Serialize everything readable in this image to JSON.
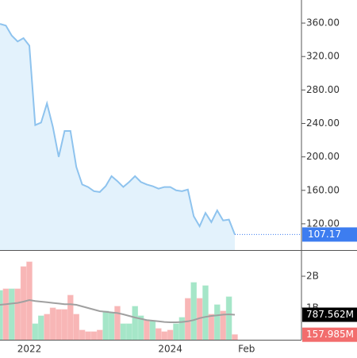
{
  "chart_data": [
    {
      "type": "area",
      "color": "#8ec3ee",
      "fill": "#e3f2fc",
      "last_color": "#3d7df0",
      "values": [
        359,
        357,
        345,
        338,
        342,
        333,
        238,
        241,
        264,
        236,
        200,
        231,
        231,
        188,
        167,
        164,
        159,
        158,
        165,
        177,
        171,
        164,
        170,
        177,
        170,
        167,
        165,
        162,
        164,
        164,
        160,
        159,
        161,
        129,
        117,
        133,
        122,
        136,
        124,
        125,
        107.17,
        null,
        null
      ],
      "ylim": [
        88.6,
        387.6
      ],
      "yticks": [
        {
          "value": 120,
          "label": "120.00"
        },
        {
          "value": 160,
          "label": "160.00"
        },
        {
          "value": 200,
          "label": "200.00"
        },
        {
          "value": 240,
          "label": "240.00"
        },
        {
          "value": 280,
          "label": "280.00"
        },
        {
          "value": 320,
          "label": "320.00"
        },
        {
          "value": 360,
          "label": "360.00"
        }
      ]
    },
    {
      "type": "bar",
      "categories": [
        null,
        null,
        null,
        null,
        null,
        "2022",
        null,
        null,
        null,
        null,
        null,
        null,
        null,
        null,
        null,
        null,
        null,
        null,
        null,
        null,
        null,
        null,
        null,
        null,
        null,
        null,
        null,
        null,
        null,
        "2024",
        null,
        null,
        null,
        null,
        null,
        null,
        null,
        null,
        null,
        null,
        null,
        null,
        "Feb"
      ],
      "ylim": [
        0,
        2.8
      ],
      "yticks": [
        {
          "value": 1,
          "label": "1B"
        },
        {
          "value": 2,
          "label": "2B"
        }
      ],
      "series": [
        {
          "type": "bar",
          "color": "#f26d6d",
          "values": [
            1.55,
            1.6,
            1.6,
            1.6,
            2.3,
            2.45,
            0.5,
            0.75,
            0.8,
            1.0,
            0.95,
            0.95,
            1.4,
            0.8,
            0.3,
            0.25,
            0.25,
            0.3,
            0.9,
            0.85,
            1.05,
            0.5,
            0.5,
            1.05,
            0.75,
            0.6,
            0.6,
            0.35,
            0.25,
            0.3,
            0.5,
            0.7,
            1.3,
            1.8,
            1.3,
            1.7,
            0.8,
            1.1,
            0.9,
            1.35,
            0.157985,
            null,
            null
          ],
          "colors": [
            "#a5e6c8",
            "#f8b6b6",
            "#a5e6c8",
            "#f8b6b6",
            "#f8b6b6",
            "#f8b6b6",
            "#a5e6c8",
            "#a5e6c8",
            "#f8b6b6",
            "#f8b6b6",
            "#f8b6b6",
            "#f8b6b6",
            "#f8b6b6",
            "#f8b6b6",
            "#f8b6b6",
            "#f8b6b6",
            "#f8b6b6",
            "#f8b6b6",
            "#a5e6c8",
            "#a5e6c8",
            "#f8b6b6",
            "#a5e6c8",
            "#a5e6c8",
            "#a5e6c8",
            "#a5e6c8",
            "#f8b6b6",
            "#a5e6c8",
            "#f8b6b6",
            "#f8b6b6",
            "#f8b6b6",
            "#a5e6c8",
            "#a5e6c8",
            "#f8b6b6",
            "#a5e6c8",
            "#f8b6b6",
            "#a5e6c8",
            "#f8b6b6",
            "#a5e6c8",
            "#f8b6b6",
            "#a5e6c8",
            "#f8b6b6",
            null,
            null
          ],
          "value_labels": [
            null,
            null,
            null,
            null,
            null,
            null,
            null,
            null,
            null,
            null,
            null,
            null,
            null,
            null,
            null,
            null,
            null,
            null,
            null,
            null,
            null,
            null,
            null,
            null,
            null,
            null,
            null,
            null,
            null,
            null,
            null,
            null,
            null,
            null,
            null,
            null,
            null,
            null,
            null,
            null,
            "157.985M",
            null,
            null
          ]
        },
        {
          "type": "line",
          "color": "#a0a0a0",
          "label_color": "#000000",
          "values": [
            1.1,
            1.12,
            1.14,
            1.16,
            1.2,
            1.25,
            1.22,
            1.2,
            1.18,
            1.16,
            1.14,
            1.12,
            1.12,
            1.1,
            1.05,
            1.0,
            0.95,
            0.9,
            0.88,
            0.86,
            0.84,
            0.8,
            0.75,
            0.7,
            0.66,
            0.62,
            0.6,
            0.58,
            0.56,
            0.55,
            0.55,
            0.56,
            0.58,
            0.62,
            0.68,
            0.72,
            0.75,
            0.77,
            0.79,
            0.8,
            0.787562,
            null,
            null
          ],
          "value_labels": [
            null,
            null,
            null,
            null,
            null,
            null,
            null,
            null,
            null,
            null,
            null,
            null,
            null,
            null,
            null,
            null,
            null,
            null,
            null,
            null,
            null,
            null,
            null,
            null,
            null,
            null,
            null,
            null,
            null,
            null,
            null,
            null,
            null,
            null,
            null,
            null,
            null,
            null,
            null,
            null,
            "787.562M",
            null,
            null
          ]
        }
      ]
    }
  ]
}
